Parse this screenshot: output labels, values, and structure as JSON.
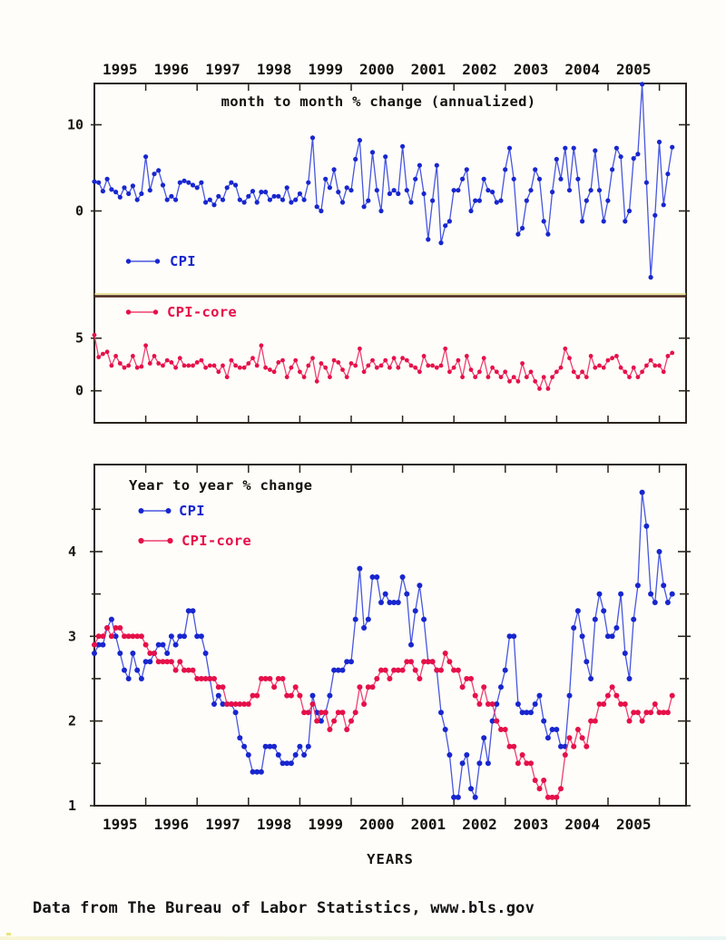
{
  "page": {
    "footer": "Data from The Bureau of Labor Statistics, www.bls.gov"
  },
  "colors": {
    "cpi": "#1826cf",
    "cpi_line": "#4856e0",
    "core": "#e61049",
    "core_line": "#ee4070",
    "axis": "#2b241c",
    "text": "#15120e"
  },
  "x_year_labels": [
    "1995",
    "1996",
    "1997",
    "1998",
    "1999",
    "2000",
    "2001",
    "2002",
    "2003",
    "2004",
    "2005"
  ],
  "chart_data": [
    {
      "type": "line",
      "title": "month to month % change (annualized)",
      "x_start": "1995-01",
      "x_end": "2006-04",
      "frequency": "monthly",
      "legend_position": "inside-left",
      "grid": false,
      "panels": [
        {
          "name": "CPI",
          "color_key": "cpi",
          "yticks": [
            10,
            0
          ],
          "ylim": [
            -9.9,
            14.8
          ],
          "values": [
            3.4,
            3.3,
            2.3,
            3.7,
            2.5,
            2.2,
            1.6,
            2.7,
            2.0,
            2.9,
            1.3,
            2.0,
            6.3,
            2.4,
            4.3,
            4.7,
            3.0,
            1.3,
            1.7,
            1.3,
            3.3,
            3.5,
            3.3,
            3.0,
            2.7,
            3.3,
            1.0,
            1.3,
            0.7,
            1.7,
            1.3,
            2.7,
            3.3,
            3.0,
            1.3,
            1.0,
            1.7,
            2.3,
            1.0,
            2.2,
            2.2,
            1.3,
            1.7,
            1.7,
            1.3,
            2.7,
            1.0,
            1.3,
            2.0,
            1.3,
            3.3,
            8.5,
            0.5,
            0.0,
            3.7,
            2.7,
            4.8,
            2.2,
            1.0,
            2.7,
            2.4,
            6.0,
            8.2,
            0.5,
            1.2,
            6.8,
            2.4,
            0.0,
            6.3,
            2.0,
            2.4,
            2.0,
            7.5,
            2.4,
            1.0,
            3.7,
            5.3,
            2.0,
            -3.3,
            1.2,
            5.3,
            -3.7,
            -1.7,
            -1.2,
            2.4,
            2.4,
            3.7,
            4.8,
            0.0,
            1.2,
            1.2,
            3.7,
            2.4,
            2.2,
            1.0,
            1.2,
            4.8,
            7.3,
            3.7,
            -2.7,
            -2.0,
            1.2,
            2.4,
            4.8,
            3.7,
            -1.2,
            -2.7,
            2.2,
            6.0,
            3.7,
            7.3,
            2.4,
            7.3,
            3.7,
            -1.2,
            1.2,
            2.4,
            7.0,
            2.4,
            -1.2,
            1.2,
            4.8,
            7.3,
            6.3,
            -1.2,
            0.0,
            6.1,
            6.6,
            14.7,
            3.3,
            -7.7,
            -0.5,
            8.0,
            0.7,
            4.3,
            7.4
          ]
        },
        {
          "name": "CPI-core",
          "color_key": "core",
          "yticks": [
            5,
            0
          ],
          "ylim": [
            -3.0,
            8.9
          ],
          "values": [
            5.3,
            3.2,
            3.5,
            3.7,
            2.4,
            3.3,
            2.6,
            2.2,
            2.4,
            3.3,
            2.2,
            2.3,
            4.3,
            2.6,
            3.3,
            2.6,
            2.4,
            2.9,
            2.7,
            2.2,
            3.1,
            2.4,
            2.4,
            2.4,
            2.7,
            2.9,
            2.2,
            2.4,
            2.4,
            1.8,
            2.4,
            1.3,
            2.9,
            2.4,
            2.2,
            2.2,
            2.6,
            3.1,
            2.4,
            4.3,
            2.2,
            2.0,
            1.8,
            2.7,
            2.9,
            1.3,
            2.2,
            2.9,
            1.8,
            1.3,
            2.4,
            3.1,
            0.9,
            2.6,
            2.2,
            1.3,
            2.9,
            2.7,
            2.0,
            1.3,
            2.6,
            2.4,
            4.0,
            1.8,
            2.4,
            2.9,
            2.2,
            2.4,
            2.9,
            2.2,
            3.1,
            2.2,
            3.1,
            2.9,
            2.4,
            2.2,
            1.8,
            3.3,
            2.4,
            2.4,
            2.2,
            2.4,
            4.0,
            1.8,
            2.2,
            2.9,
            1.3,
            3.3,
            2.0,
            1.3,
            1.8,
            3.1,
            1.3,
            2.2,
            1.8,
            1.3,
            1.8,
            0.9,
            1.3,
            0.9,
            2.6,
            1.3,
            1.8,
            0.9,
            0.2,
            1.3,
            0.2,
            1.3,
            1.8,
            2.2,
            4.0,
            3.1,
            1.8,
            1.3,
            1.8,
            1.3,
            3.3,
            2.2,
            2.4,
            2.2,
            2.9,
            3.1,
            3.3,
            2.2,
            1.8,
            1.3,
            2.2,
            1.3,
            1.8,
            2.4,
            2.9,
            2.4,
            2.4,
            1.8,
            3.3,
            3.6
          ]
        }
      ],
      "legend": [
        {
          "label": "CPI"
        },
        {
          "label": "CPI-core"
        }
      ]
    },
    {
      "type": "line",
      "title": "Year to year % change",
      "xlabel": "YEARS",
      "x_start": "1995-01",
      "x_end": "2006-04",
      "frequency": "monthly",
      "yticks_major": [
        1,
        2,
        3,
        4
      ],
      "yticks_minor": [
        1.5,
        2.5,
        3.5,
        4.5
      ],
      "ylim": [
        1.0,
        5.0
      ],
      "grid": false,
      "legend": [
        {
          "label": "CPI"
        },
        {
          "label": "CPI-core"
        }
      ],
      "series": [
        {
          "name": "CPI",
          "color_key": "cpi",
          "values": [
            2.8,
            2.9,
            2.9,
            3.1,
            3.2,
            3.0,
            2.8,
            2.6,
            2.5,
            2.8,
            2.6,
            2.5,
            2.7,
            2.7,
            2.8,
            2.9,
            2.9,
            2.8,
            3.0,
            2.9,
            3.0,
            3.0,
            3.3,
            3.3,
            3.0,
            3.0,
            2.8,
            2.5,
            2.2,
            2.3,
            2.2,
            2.2,
            2.2,
            2.1,
            1.8,
            1.7,
            1.6,
            1.4,
            1.4,
            1.4,
            1.7,
            1.7,
            1.7,
            1.6,
            1.5,
            1.5,
            1.5,
            1.6,
            1.7,
            1.6,
            1.7,
            2.3,
            2.1,
            2.0,
            2.1,
            2.3,
            2.6,
            2.6,
            2.6,
            2.7,
            2.7,
            3.2,
            3.8,
            3.1,
            3.2,
            3.7,
            3.7,
            3.4,
            3.5,
            3.4,
            3.4,
            3.4,
            3.7,
            3.5,
            2.9,
            3.3,
            3.6,
            3.2,
            2.7,
            2.7,
            2.6,
            2.1,
            1.9,
            1.6,
            1.1,
            1.1,
            1.5,
            1.6,
            1.2,
            1.1,
            1.5,
            1.8,
            1.5,
            2.0,
            2.2,
            2.4,
            2.6,
            3.0,
            3.0,
            2.2,
            2.1,
            2.1,
            2.1,
            2.2,
            2.3,
            2.0,
            1.8,
            1.9,
            1.9,
            1.7,
            1.7,
            2.3,
            3.1,
            3.3,
            3.0,
            2.7,
            2.5,
            3.2,
            3.5,
            3.3,
            3.0,
            3.0,
            3.1,
            3.5,
            2.8,
            2.5,
            3.2,
            3.6,
            4.7,
            4.3,
            3.5,
            3.4,
            4.0,
            3.6,
            3.4,
            3.5
          ]
        },
        {
          "name": "CPI-core",
          "color_key": "core",
          "values": [
            2.9,
            3.0,
            3.0,
            3.1,
            3.0,
            3.1,
            3.1,
            3.0,
            3.0,
            3.0,
            3.0,
            3.0,
            2.9,
            2.8,
            2.8,
            2.7,
            2.7,
            2.7,
            2.7,
            2.6,
            2.7,
            2.6,
            2.6,
            2.6,
            2.5,
            2.5,
            2.5,
            2.5,
            2.5,
            2.4,
            2.4,
            2.2,
            2.2,
            2.2,
            2.2,
            2.2,
            2.2,
            2.3,
            2.3,
            2.5,
            2.5,
            2.5,
            2.4,
            2.5,
            2.5,
            2.3,
            2.3,
            2.4,
            2.3,
            2.1,
            2.1,
            2.2,
            2.0,
            2.1,
            2.1,
            1.9,
            2.0,
            2.1,
            2.1,
            1.9,
            2.0,
            2.1,
            2.4,
            2.2,
            2.4,
            2.4,
            2.5,
            2.6,
            2.6,
            2.5,
            2.6,
            2.6,
            2.6,
            2.7,
            2.7,
            2.6,
            2.5,
            2.7,
            2.7,
            2.7,
            2.6,
            2.6,
            2.8,
            2.7,
            2.6,
            2.6,
            2.4,
            2.5,
            2.5,
            2.3,
            2.2,
            2.4,
            2.2,
            2.2,
            2.0,
            1.9,
            1.9,
            1.7,
            1.7,
            1.5,
            1.6,
            1.5,
            1.5,
            1.3,
            1.2,
            1.3,
            1.1,
            1.1,
            1.1,
            1.2,
            1.6,
            1.8,
            1.7,
            1.9,
            1.8,
            1.7,
            2.0,
            2.0,
            2.2,
            2.2,
            2.3,
            2.4,
            2.3,
            2.2,
            2.2,
            2.0,
            2.1,
            2.1,
            2.0,
            2.1,
            2.1,
            2.2,
            2.1,
            2.1,
            2.1,
            2.3
          ]
        }
      ]
    }
  ]
}
